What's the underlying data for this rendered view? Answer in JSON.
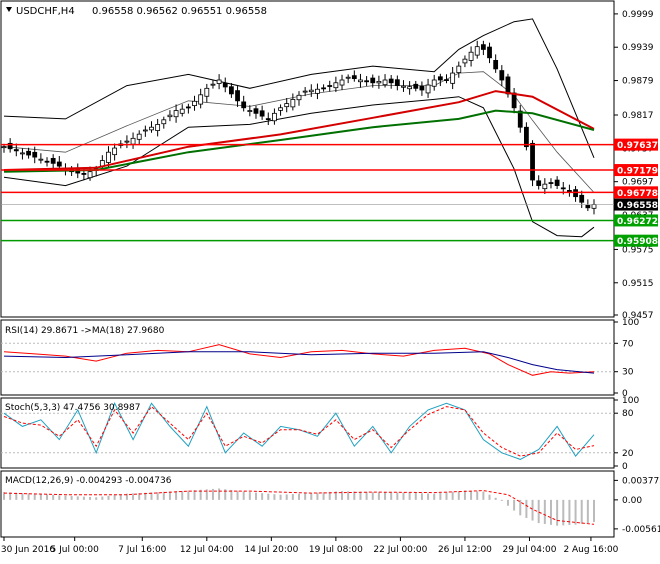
{
  "header": {
    "symbol": "USDCHF,H4",
    "quote": "0.96558 0.96562 0.96551 0.96558"
  },
  "chart_data": [
    {
      "type": "candlestick",
      "panel": "main",
      "ylim": [
        0.9457,
        1.0015
      ],
      "y_ticks": [
        0.9999,
        0.9939,
        0.9879,
        0.9817,
        0.9757,
        0.9697,
        0.9637,
        0.9575,
        0.9515,
        0.9457
      ],
      "x_tick_labels": [
        "30 Jun 2016",
        "5 Jul 00:00",
        "7 Jul 16:00",
        "12 Jul 04:00",
        "14 Jul 20:00",
        "19 Jul 08:00",
        "22 Jul 00:00",
        "26 Jul 12:00",
        "29 Jul 04:00",
        "2 Aug 16:00"
      ],
      "close_path": [
        [
          0,
          0.976
        ],
        [
          4,
          0.9745
        ],
        [
          8,
          0.973
        ],
        [
          11,
          0.9715
        ],
        [
          13,
          0.971
        ],
        [
          15,
          0.972
        ],
        [
          17,
          0.975
        ],
        [
          19,
          0.9765
        ],
        [
          21,
          0.9775
        ],
        [
          23,
          0.979
        ],
        [
          25,
          0.98
        ],
        [
          28,
          0.9825
        ],
        [
          30,
          0.983
        ],
        [
          33,
          0.9865
        ],
        [
          35,
          0.988
        ],
        [
          37,
          0.9855
        ],
        [
          39,
          0.983
        ],
        [
          41,
          0.982
        ],
        [
          43,
          0.981
        ],
        [
          45,
          0.983
        ],
        [
          47,
          0.9845
        ],
        [
          49,
          0.986
        ],
        [
          52,
          0.9865
        ],
        [
          54,
          0.9875
        ],
        [
          56,
          0.9885
        ],
        [
          58,
          0.988
        ],
        [
          60,
          0.9875
        ],
        [
          62,
          0.988
        ],
        [
          64,
          0.987
        ],
        [
          66,
          0.9868
        ],
        [
          68,
          0.9862
        ],
        [
          70,
          0.988
        ],
        [
          72,
          0.988
        ],
        [
          74,
          0.9905
        ],
        [
          76,
          0.993
        ],
        [
          77,
          0.994
        ],
        [
          78,
          0.9935
        ],
        [
          79,
          0.992
        ],
        [
          81,
          0.988
        ],
        [
          83,
          0.983
        ],
        [
          85,
          0.976
        ],
        [
          86,
          0.97
        ],
        [
          87,
          0.969
        ],
        [
          89,
          0.9695
        ],
        [
          91,
          0.9685
        ],
        [
          93,
          0.967
        ],
        [
          95,
          0.965
        ],
        [
          96,
          0.96558
        ]
      ],
      "moving_averages": [
        {
          "color": "#d40000",
          "path": [
            [
              0,
              0.9718
            ],
            [
              15,
              0.9722
            ],
            [
              30,
              0.976
            ],
            [
              45,
              0.9782
            ],
            [
              60,
              0.9812
            ],
            [
              74,
              0.984
            ],
            [
              80,
              0.986
            ],
            [
              86,
              0.985
            ],
            [
              96,
              0.9792
            ]
          ]
        },
        {
          "color": "#007000",
          "path": [
            [
              0,
              0.9715
            ],
            [
              15,
              0.9718
            ],
            [
              30,
              0.975
            ],
            [
              45,
              0.9772
            ],
            [
              60,
              0.9795
            ],
            [
              74,
              0.981
            ],
            [
              80,
              0.9825
            ],
            [
              86,
              0.982
            ],
            [
              96,
              0.979
            ]
          ]
        }
      ],
      "bollinger_upper": [
        [
          0,
          0.9815
        ],
        [
          10,
          0.981
        ],
        [
          20,
          0.987
        ],
        [
          30,
          0.989
        ],
        [
          40,
          0.9865
        ],
        [
          50,
          0.989
        ],
        [
          60,
          0.9905
        ],
        [
          70,
          0.9895
        ],
        [
          74,
          0.9935
        ],
        [
          78,
          0.996
        ],
        [
          83,
          0.9985
        ],
        [
          86,
          0.999
        ],
        [
          90,
          0.99
        ],
        [
          96,
          0.974
        ]
      ],
      "bollinger_lower": [
        [
          0,
          0.9705
        ],
        [
          10,
          0.969
        ],
        [
          20,
          0.9725
        ],
        [
          30,
          0.9795
        ],
        [
          40,
          0.98
        ],
        [
          50,
          0.982
        ],
        [
          60,
          0.9835
        ],
        [
          70,
          0.9845
        ],
        [
          74,
          0.985
        ],
        [
          78,
          0.983
        ],
        [
          83,
          0.972
        ],
        [
          86,
          0.9625
        ],
        [
          90,
          0.96
        ],
        [
          94,
          0.9598
        ],
        [
          96,
          0.9615
        ]
      ],
      "horizontal_levels": [
        {
          "value": 0.97637,
          "label": "0.97637",
          "color": "#ff0000",
          "label_bg": "#ff0000"
        },
        {
          "value": 0.97179,
          "label": "0.97179",
          "color": "#ff0000",
          "label_bg": "#ff0000"
        },
        {
          "value": 0.96778,
          "label": "0.96778",
          "color": "#ff0000",
          "label_bg": "#ff0000"
        },
        {
          "value": 0.96272,
          "label": "0.96272",
          "color": "#009900",
          "label_bg": "#00a000"
        },
        {
          "value": 0.95908,
          "label": "0.95908",
          "color": "#009900",
          "label_bg": "#00a000"
        }
      ],
      "current_price": {
        "value": 0.96558,
        "label": "0.96558",
        "label_bg": "#000000"
      }
    },
    {
      "type": "line",
      "panel": "rsi",
      "title": "RSI(14) 29.8671  ->MA(18) 27.9680",
      "ylim": [
        0,
        100
      ],
      "y_ticks": [
        100,
        70,
        30,
        0
      ],
      "series": [
        {
          "color": "#ff0000",
          "path": [
            [
              0,
              58
            ],
            [
              5,
              55
            ],
            [
              10,
              52
            ],
            [
              15,
              45
            ],
            [
              20,
              56
            ],
            [
              25,
              60
            ],
            [
              30,
              58
            ],
            [
              35,
              68
            ],
            [
              40,
              55
            ],
            [
              45,
              50
            ],
            [
              50,
              58
            ],
            [
              55,
              60
            ],
            [
              60,
              55
            ],
            [
              65,
              52
            ],
            [
              70,
              60
            ],
            [
              75,
              63
            ],
            [
              79,
              55
            ],
            [
              82,
              40
            ],
            [
              86,
              25
            ],
            [
              89,
              30
            ],
            [
              92,
              28
            ],
            [
              96,
              29.87
            ]
          ]
        },
        {
          "color": "#00008b",
          "path": [
            [
              0,
              52
            ],
            [
              10,
              50
            ],
            [
              20,
              54
            ],
            [
              30,
              58
            ],
            [
              40,
              58
            ],
            [
              50,
              54
            ],
            [
              60,
              56
            ],
            [
              70,
              56
            ],
            [
              78,
              58
            ],
            [
              82,
              50
            ],
            [
              86,
              40
            ],
            [
              90,
              33
            ],
            [
              96,
              27.97
            ]
          ]
        }
      ]
    },
    {
      "type": "line",
      "panel": "stochastic",
      "title": "Stoch(5,3,3) 47.4756 30.8987",
      "ylim": [
        0,
        100
      ],
      "y_ticks": [
        100,
        80,
        20,
        0
      ],
      "series": [
        {
          "color": "#20a0c0",
          "path": [
            [
              0,
              80
            ],
            [
              3,
              60
            ],
            [
              6,
              70
            ],
            [
              9,
              40
            ],
            [
              12,
              85
            ],
            [
              15,
              20
            ],
            [
              18,
              95
            ],
            [
              21,
              40
            ],
            [
              24,
              95
            ],
            [
              27,
              60
            ],
            [
              30,
              30
            ],
            [
              33,
              90
            ],
            [
              36,
              20
            ],
            [
              39,
              50
            ],
            [
              42,
              30
            ],
            [
              45,
              60
            ],
            [
              48,
              55
            ],
            [
              51,
              45
            ],
            [
              54,
              80
            ],
            [
              57,
              30
            ],
            [
              60,
              60
            ],
            [
              63,
              20
            ],
            [
              66,
              60
            ],
            [
              69,
              85
            ],
            [
              72,
              95
            ],
            [
              75,
              85
            ],
            [
              78,
              40
            ],
            [
              81,
              20
            ],
            [
              84,
              10
            ],
            [
              87,
              25
            ],
            [
              90,
              60
            ],
            [
              93,
              15
            ],
            [
              96,
              47.48
            ]
          ]
        },
        {
          "color": "#ff0000",
          "path": [
            [
              0,
              75
            ],
            [
              3,
              65
            ],
            [
              6,
              62
            ],
            [
              9,
              45
            ],
            [
              12,
              70
            ],
            [
              15,
              30
            ],
            [
              18,
              85
            ],
            [
              21,
              50
            ],
            [
              24,
              90
            ],
            [
              27,
              65
            ],
            [
              30,
              40
            ],
            [
              33,
              80
            ],
            [
              36,
              30
            ],
            [
              39,
              45
            ],
            [
              42,
              35
            ],
            [
              45,
              55
            ],
            [
              48,
              55
            ],
            [
              51,
              48
            ],
            [
              54,
              70
            ],
            [
              57,
              40
            ],
            [
              60,
              55
            ],
            [
              63,
              28
            ],
            [
              66,
              55
            ],
            [
              69,
              78
            ],
            [
              72,
              90
            ],
            [
              75,
              85
            ],
            [
              78,
              50
            ],
            [
              81,
              28
            ],
            [
              84,
              15
            ],
            [
              87,
              20
            ],
            [
              90,
              50
            ],
            [
              93,
              25
            ],
            [
              96,
              30.9
            ]
          ]
        }
      ]
    },
    {
      "type": "bar",
      "panel": "macd",
      "title": "MACD(12,26,9) -0.004293 -0.004736",
      "ylim": [
        -0.0068,
        0.0052
      ],
      "y_ticks": [
        0.003772,
        0.0,
        -0.005616
      ],
      "histogram_color": "#bbbbbb",
      "signal_color": "#ff0000",
      "histogram": [
        [
          0,
          0.0015
        ],
        [
          5,
          0.0012
        ],
        [
          10,
          0.0008
        ],
        [
          15,
          0.0005
        ],
        [
          20,
          0.0012
        ],
        [
          25,
          0.0015
        ],
        [
          30,
          0.0018
        ],
        [
          35,
          0.0022
        ],
        [
          40,
          0.0015
        ],
        [
          45,
          0.001
        ],
        [
          50,
          0.0013
        ],
        [
          55,
          0.0017
        ],
        [
          60,
          0.0015
        ],
        [
          65,
          0.0014
        ],
        [
          70,
          0.0012
        ],
        [
          75,
          0.0018
        ],
        [
          78,
          0.0016
        ],
        [
          81,
          -0.0002
        ],
        [
          84,
          -0.003
        ],
        [
          87,
          -0.0045
        ],
        [
          90,
          -0.005
        ],
        [
          93,
          -0.0048
        ],
        [
          96,
          -0.004293
        ]
      ],
      "signal": [
        [
          0,
          0.0013
        ],
        [
          10,
          0.001
        ],
        [
          20,
          0.001
        ],
        [
          30,
          0.0017
        ],
        [
          40,
          0.0017
        ],
        [
          50,
          0.0013
        ],
        [
          60,
          0.0015
        ],
        [
          70,
          0.0014
        ],
        [
          78,
          0.0018
        ],
        [
          82,
          0.001
        ],
        [
          86,
          -0.0018
        ],
        [
          90,
          -0.004
        ],
        [
          96,
          -0.004736
        ]
      ]
    }
  ]
}
